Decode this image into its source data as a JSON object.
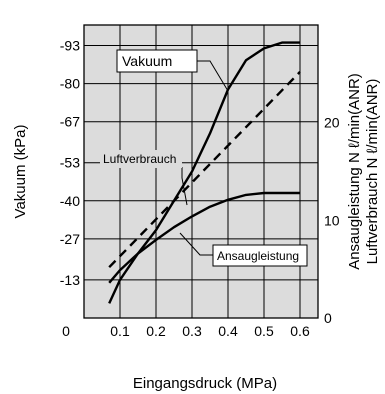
{
  "chart_data": {
    "type": "line",
    "title": "",
    "xlabel": "Eingangsdruck (MPa)",
    "ylabel_left": "Vakuum (kPa)",
    "ylabel_right_1": "Ansaugleistung N ℓ/min(ANR)",
    "ylabel_right_2": "Luftverbrauch N ℓ/min(ANR)",
    "xlim": [
      0.0,
      0.65
    ],
    "ylim_left": [
      0,
      -100
    ],
    "ylim_right": [
      0,
      30
    ],
    "grid": true,
    "x_ticks": [
      {
        "value": 0.1,
        "label": "0.1"
      },
      {
        "value": 0.2,
        "label": "0.2"
      },
      {
        "value": 0.3,
        "label": "0.3"
      },
      {
        "value": 0.4,
        "label": "0.4"
      },
      {
        "value": 0.5,
        "label": "0.5"
      },
      {
        "value": 0.6,
        "label": "0.6"
      }
    ],
    "x_zero_label": "0",
    "y_left_ticks": [
      {
        "value": -93,
        "label": "-93"
      },
      {
        "value": -80,
        "label": "-80"
      },
      {
        "value": -67,
        "label": "-67"
      },
      {
        "value": -53,
        "label": "-53"
      },
      {
        "value": -40,
        "label": "-40"
      },
      {
        "value": -27,
        "label": "-27"
      },
      {
        "value": -13,
        "label": "-13"
      }
    ],
    "y_right_ticks": [
      {
        "value": 0,
        "label": "0"
      },
      {
        "value": 10,
        "label": "10"
      },
      {
        "value": 20,
        "label": "20"
      }
    ],
    "series": [
      {
        "name": "Vakuum",
        "axis": "left",
        "style": "solid",
        "x": [
          0.07,
          0.1,
          0.15,
          0.2,
          0.25,
          0.3,
          0.35,
          0.4,
          0.45,
          0.5,
          0.55,
          0.6
        ],
        "y": [
          -5,
          -13,
          -22,
          -30,
          -40,
          -50,
          -63,
          -78,
          -88,
          -92,
          -94,
          -94
        ]
      },
      {
        "name": "Luftverbrauch",
        "axis": "right",
        "style": "dashed",
        "x": [
          0.07,
          0.6
        ],
        "y": [
          5.2,
          25.2
        ]
      },
      {
        "name": "Ansaugleistung",
        "axis": "right",
        "style": "solid",
        "x": [
          0.07,
          0.1,
          0.15,
          0.2,
          0.25,
          0.3,
          0.35,
          0.4,
          0.45,
          0.5,
          0.55,
          0.6
        ],
        "y": [
          3.6,
          4.9,
          6.6,
          8.0,
          9.3,
          10.4,
          11.4,
          12.1,
          12.6,
          12.8,
          12.8,
          12.8
        ]
      }
    ]
  },
  "colors": {
    "plot_background": "#dcdcdc",
    "grid": "#000000",
    "lines": "#000000"
  }
}
